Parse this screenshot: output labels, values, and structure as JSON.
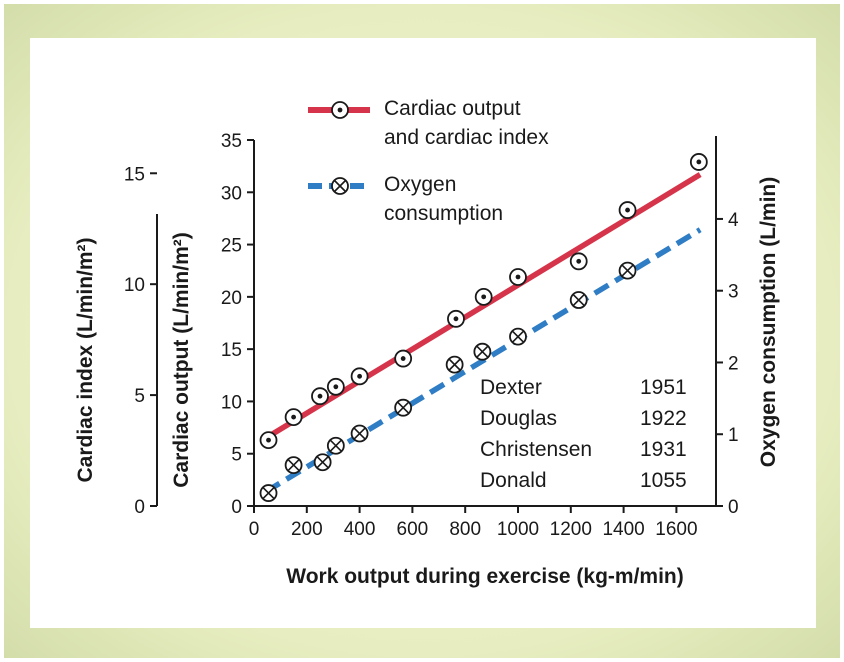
{
  "chart_data": {
    "type": "line",
    "xlabel": "Work output during exercise (kg-m/min)",
    "xlim": [
      0,
      1750
    ],
    "xticks": [
      0,
      200,
      400,
      600,
      800,
      1000,
      1200,
      1400,
      1600
    ],
    "axes": {
      "cardiac_index": {
        "label": "Cardiac index (L/min/m²)",
        "ylim": [
          0,
          16.5
        ],
        "ticks": [
          0,
          5,
          10,
          15
        ]
      },
      "cardiac_output": {
        "label": "Cardiac output (L/min/m²)",
        "ylim": [
          0,
          35
        ],
        "ticks": [
          0,
          5,
          10,
          15,
          20,
          25,
          30,
          35
        ]
      },
      "oxygen": {
        "label": "Oxygen consumption (L/min)",
        "ylim": [
          0,
          5.1
        ],
        "ticks": [
          0,
          1,
          2,
          3,
          4
        ]
      }
    },
    "series": [
      {
        "name": "Cardiac output and cardiac index",
        "name_lines": [
          "Cardiac output",
          "and cardiac index"
        ],
        "axis": "cardiac_output",
        "color": "#d6344a",
        "line_style": "solid",
        "marker": "dot",
        "fit_line": {
          "x": [
            45,
            1690
          ],
          "y": [
            6.5,
            31.7
          ]
        },
        "points": [
          {
            "x": 55,
            "y": 6.3
          },
          {
            "x": 150,
            "y": 8.5
          },
          {
            "x": 250,
            "y": 10.5
          },
          {
            "x": 310,
            "y": 11.4
          },
          {
            "x": 400,
            "y": 12.4
          },
          {
            "x": 565,
            "y": 14.1
          },
          {
            "x": 765,
            "y": 17.9
          },
          {
            "x": 870,
            "y": 20.0
          },
          {
            "x": 1000,
            "y": 21.9
          },
          {
            "x": 1230,
            "y": 23.4
          },
          {
            "x": 1415,
            "y": 28.3
          },
          {
            "x": 1685,
            "y": 32.9
          }
        ]
      },
      {
        "name": "Oxygen consumption",
        "name_lines": [
          "Oxygen",
          "consumption"
        ],
        "axis": "oxygen",
        "color": "#2f7dc4",
        "line_style": "dashed",
        "marker": "cross",
        "fit_line": {
          "x": [
            45,
            1690
          ],
          "y": [
            0.2,
            3.85
          ]
        },
        "points": [
          {
            "x": 55,
            "y": 0.18
          },
          {
            "x": 150,
            "y": 0.57
          },
          {
            "x": 260,
            "y": 0.61
          },
          {
            "x": 310,
            "y": 0.84
          },
          {
            "x": 400,
            "y": 1.01
          },
          {
            "x": 565,
            "y": 1.37
          },
          {
            "x": 760,
            "y": 1.97
          },
          {
            "x": 865,
            "y": 2.15
          },
          {
            "x": 1000,
            "y": 2.36
          },
          {
            "x": 1230,
            "y": 2.87
          },
          {
            "x": 1415,
            "y": 3.28
          }
        ]
      }
    ],
    "references": [
      {
        "name": "Dexter",
        "year": "1951"
      },
      {
        "name": "Douglas",
        "year": "1922"
      },
      {
        "name": "Christensen",
        "year": "1931"
      },
      {
        "name": "Donald",
        "year": "1055"
      }
    ],
    "grid": false,
    "legend_position": "top-center"
  }
}
